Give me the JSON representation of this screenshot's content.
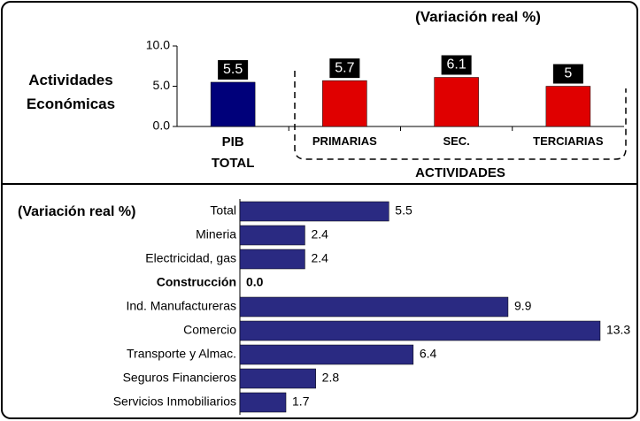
{
  "chart_data": [
    {
      "type": "bar",
      "title": "(Variación real %)",
      "y_label": "Actividades Económicas",
      "categories": [
        "PIB TOTAL",
        "PRIMARIAS",
        "SEC.",
        "TERCIARIAS"
      ],
      "values": [
        5.5,
        5.7,
        6.1,
        5.0
      ],
      "colors": [
        "#00007a",
        "#e00000",
        "#e00000",
        "#e00000"
      ],
      "ylim": [
        0,
        10
      ],
      "yticks": [
        {
          "value": 0,
          "label": "0.0"
        },
        {
          "value": 5,
          "label": "5.0"
        },
        {
          "value": 10,
          "label": "10.0"
        }
      ],
      "annotation": "ACTIVIDADES"
    },
    {
      "type": "barh",
      "title": "(Variación real %)",
      "categories": [
        "Total",
        "Mineria",
        "Electricidad, gas",
        "Construcción",
        "Ind. Manufactureras",
        "Comercio",
        "Transporte y Almac.",
        "Seguros Financieros",
        "Servicios Inmobiliarios"
      ],
      "values": [
        5.5,
        2.4,
        2.4,
        0.0,
        9.9,
        13.3,
        6.4,
        2.8,
        1.7
      ],
      "value_labels": [
        "5.5",
        "2.4",
        "2.4",
        "0.0",
        "9.9",
        "13.3",
        "6.4",
        "2.8",
        "1.7"
      ],
      "color": "#2a2a82"
    }
  ]
}
